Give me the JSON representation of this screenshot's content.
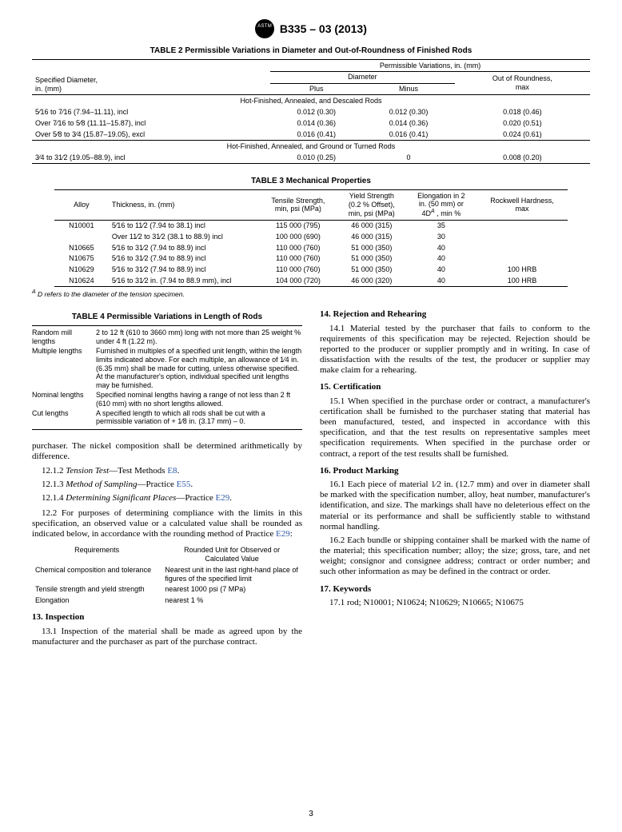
{
  "doc_id": "B335 – 03 (2013)",
  "page_number": "3",
  "table2": {
    "title": "TABLE 2 Permissible Variations in Diameter and Out-of-Roundness of Finished Rods",
    "col_headers": {
      "spec_diam": "Specified Diameter,\nin. (mm)",
      "perm_var": "Permissible Variations, in. (mm)",
      "diameter": "Diameter",
      "plus": "Plus",
      "minus": "Minus",
      "oor": "Out of Roundness,\nmax"
    },
    "sections": [
      {
        "label": "Hot-Finished, Annealed, and Descaled Rods",
        "rows": [
          {
            "d": "5⁄16 to 7⁄16 (7.94–11.11), incl",
            "plus": "0.012 (0.30)",
            "minus": "0.012 (0.30)",
            "oor": "0.018 (0.46)"
          },
          {
            "d": "Over 7⁄16 to 5⁄8 (11.11–15.87), incl",
            "plus": "0.014 (0.36)",
            "minus": "0.014 (0.36)",
            "oor": "0.020 (0.51)"
          },
          {
            "d": "Over 5⁄8 to 3⁄4 (15.87–19.05), excl",
            "plus": "0.016 (0.41)",
            "minus": "0.016 (0.41)",
            "oor": "0.024 (0.61)"
          }
        ]
      },
      {
        "label": "Hot-Finished, Annealed, and Ground or Turned Rods",
        "rows": [
          {
            "d": "3⁄4 to 31⁄2 (19.05–88.9), incl",
            "plus": "0.010 (0.25)",
            "minus": "0",
            "oor": "0.008 (0.20)"
          }
        ]
      }
    ]
  },
  "table3": {
    "title": "TABLE 3 Mechanical Properties",
    "headers": {
      "alloy": "Alloy",
      "thickness": "Thickness, in. (mm)",
      "tensile": "Tensile Strength,\nmin, psi (MPa)",
      "yield": "Yield Strength\n(0.2 % Offset),\nmin, psi (MPa)",
      "elong": "Elongation in 2\nin. (50 mm) or\n4Dᴬ, min %",
      "hardness": "Rockwell Hardness,\nmax"
    },
    "rows": [
      {
        "alloy": "N10001",
        "thk": "5⁄16 to 11⁄2 (7.94 to 38.1) incl",
        "ten": "115 000 (795)",
        "ys": "46 000 (315)",
        "el": "35",
        "hb": ""
      },
      {
        "alloy": "",
        "thk": "Over 11⁄2 to 31⁄2 (38.1 to 88.9) incl",
        "ten": "100 000 (690)",
        "ys": "46 000 (315)",
        "el": "30",
        "hb": ""
      },
      {
        "alloy": "N10665",
        "thk": "5⁄16 to 31⁄2 (7.94 to 88.9) incl",
        "ten": "110 000 (760)",
        "ys": "51 000 (350)",
        "el": "40",
        "hb": ""
      },
      {
        "alloy": "N10675",
        "thk": "5⁄16 to 31⁄2 (7.94 to 88.9) incl",
        "ten": "110 000 (760)",
        "ys": "51 000 (350)",
        "el": "40",
        "hb": ""
      },
      {
        "alloy": "N10629",
        "thk": "5⁄16 to 31⁄2 (7.94 to 88.9) incl",
        "ten": "110 000 (760)",
        "ys": "51 000 (350)",
        "el": "40",
        "hb": "100 HRB"
      },
      {
        "alloy": "N10624",
        "thk": "5⁄16 to 31⁄2 in. (7.94 to 88.9 mm), incl",
        "ten": "104  000 (720)",
        "ys": "46  000 (320)",
        "el": "40",
        "hb": "100 HRB"
      }
    ],
    "footnote_label": "ᴬ ",
    "footnote": "D refers to the diameter of the tension specimen."
  },
  "table4": {
    "title": "TABLE 4 Permissible Variations in Length of Rods",
    "rows": [
      {
        "k": "Random mill lengths",
        "v": "2 to 12 ft (610 to 3660 mm) long with not more than 25 weight % under 4 ft (1.22 m)."
      },
      {
        "k": "Multiple lengths",
        "v": "Furnished in multiples of a specified unit length, within the length limits indicated above. For each multiple, an allowance of 1⁄4 in. (6.35 mm) shall be made for cutting, unless otherwise specified. At the manufacturer's option, individual specified unit lengths may be furnished."
      },
      {
        "k": "Nominal lengths",
        "v": "Specified nominal lengths having a range of not less than 2 ft (610 mm) with no short lengths allowed."
      },
      {
        "k": "Cut lengths",
        "v": "A specified length to which all rods shall be cut with a permissible variation of + 1⁄8 in. (3.17 mm) – 0."
      }
    ]
  },
  "left": {
    "intro": "purchaser. The nickel composition shall be determined arithmetically by difference.",
    "items": [
      {
        "n": "12.1.2",
        "t_i": "Tension Test",
        "t": "—Test Methods ",
        "ref": "E8",
        "after": "."
      },
      {
        "n": "12.1.3",
        "t_i": "Method of Sampling",
        "t": "—Practice ",
        "ref": "E55",
        "after": "."
      },
      {
        "n": "12.1.4",
        "t_i": "Determining Significant Places",
        "t": "—Practice ",
        "ref": "E29",
        "after": "."
      }
    ],
    "p12_2a": "12.2 For purposes of determining compliance with the limits in this specification, an observed value or a calculated value shall be rounded as indicated below, in accordance with the rounding method of Practice ",
    "p12_2_ref": "E29",
    "p12_2b": ":"
  },
  "req_table": {
    "h1": "Requirements",
    "h2": "Rounded Unit for Observed or Calculated Value",
    "rows": [
      {
        "a": "Chemical composition and tolerance",
        "b": "Nearest unit in the last right-hand place of figures of the specified limit"
      },
      {
        "a": "Tensile strength and yield strength",
        "b": "nearest 1000 psi (7 MPa)"
      },
      {
        "a": "Elongation",
        "b": "nearest 1 %"
      }
    ]
  },
  "s13": {
    "h": "13.  Inspection",
    "p": "13.1  Inspection of the material shall be made as agreed upon by the manufacturer and the purchaser as part of the purchase contract."
  },
  "s14": {
    "h": "14.  Rejection and Rehearing",
    "p": "14.1  Material tested by the purchaser that fails to conform to the requirements of this specification may be rejected. Rejection should be reported to the producer or supplier promptly and in writing. In case of dissatisfaction with the results of the test, the producer or supplier may make claim for a rehearing."
  },
  "s15": {
    "h": "15.  Certification",
    "p": "15.1  When specified in the purchase order or contract, a manufacturer's certification shall be furnished to the purchaser stating that material has been manufactured, tested, and inspected in accordance with this specification, and that the test results on representative samples meet specification requirements. When specified in the purchase order or contract, a report of the test results shall be furnished."
  },
  "s16": {
    "h": "16.  Product Marking",
    "p1": "16.1  Each piece of material 1⁄2 in. (12.7 mm) and over in diameter shall be marked with the specification number, alloy, heat number, manufacturer's identification, and size. The markings shall have no deleterious effect on the material or its performance and shall be sufficiently stable to withstand normal handling.",
    "p2": "16.2  Each bundle or shipping container shall be marked with the name of the material; this specification number; alloy; the size; gross, tare, and net weight; consignor and consignee address; contract or order number; and such other information as may be defined in the contract or order."
  },
  "s17": {
    "h": "17.  Keywords",
    "p": "17.1  rod; N10001; N10624; N10629; N10665; N10675"
  }
}
